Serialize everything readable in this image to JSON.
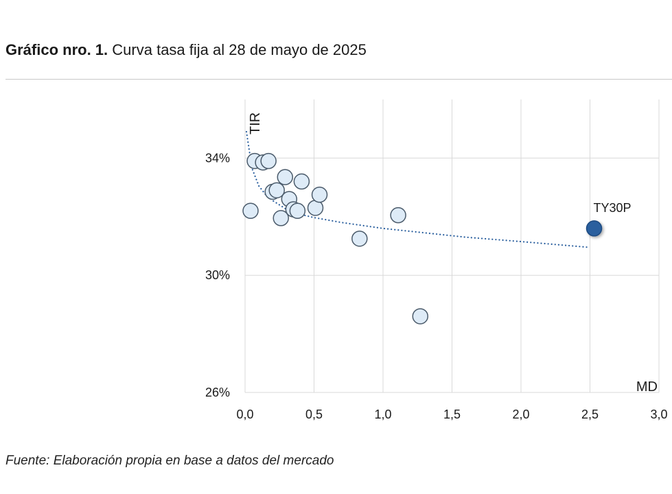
{
  "header": {
    "title_bold": "Gráfico nro. 1.",
    "title_rest": "Curva tasa fija al 28 de mayo de 2025"
  },
  "footer": {
    "source": "Fuente: Elaboración propia en base a datos del mercado"
  },
  "chart_data": {
    "type": "scatter",
    "xlabel": "MD",
    "ylabel": "TIR",
    "xlim": [
      0,
      3.0
    ],
    "ylim": [
      26,
      36
    ],
    "x_ticks": [
      "0,0",
      "0,5",
      "1,0",
      "1,5",
      "2,0",
      "2,5",
      "3,0"
    ],
    "y_ticks": [
      {
        "value": 34,
        "label": "34%"
      },
      {
        "value": 30,
        "label": "30%"
      },
      {
        "value": 26,
        "label": "26%"
      }
    ],
    "grid": true,
    "series": [
      {
        "points": [
          {
            "x": 0.04,
            "y": 32.2
          },
          {
            "x": 0.07,
            "y": 33.9
          },
          {
            "x": 0.13,
            "y": 33.85
          },
          {
            "x": 0.17,
            "y": 33.9
          },
          {
            "x": 0.2,
            "y": 32.85
          },
          {
            "x": 0.23,
            "y": 32.9
          },
          {
            "x": 0.26,
            "y": 31.95
          },
          {
            "x": 0.29,
            "y": 33.35
          },
          {
            "x": 0.32,
            "y": 32.6
          },
          {
            "x": 0.35,
            "y": 32.25
          },
          {
            "x": 0.38,
            "y": 32.2
          },
          {
            "x": 0.41,
            "y": 33.2
          },
          {
            "x": 0.51,
            "y": 32.3
          },
          {
            "x": 0.54,
            "y": 32.75
          },
          {
            "x": 0.83,
            "y": 31.25
          },
          {
            "x": 1.11,
            "y": 32.05
          },
          {
            "x": 1.27,
            "y": 28.6
          }
        ],
        "color": "#deebf7",
        "stroke": "#4a5a6a"
      },
      {
        "points": [
          {
            "x": 2.53,
            "y": 31.6,
            "label": "TY30P"
          }
        ],
        "color": "#2a5f9e"
      }
    ],
    "trendline": {
      "style": "dotted",
      "color": "#2a5f9e",
      "points": [
        [
          0.01,
          34.9
        ],
        [
          0.05,
          33.65
        ],
        [
          0.1,
          33.05
        ],
        [
          0.15,
          32.75
        ],
        [
          0.2,
          32.55
        ],
        [
          0.3,
          32.25
        ],
        [
          0.4,
          32.08
        ],
        [
          0.5,
          31.97
        ],
        [
          0.7,
          31.8
        ],
        [
          1.0,
          31.6
        ],
        [
          1.3,
          31.45
        ],
        [
          1.6,
          31.3
        ],
        [
          2.0,
          31.15
        ],
        [
          2.5,
          30.95
        ]
      ]
    }
  }
}
